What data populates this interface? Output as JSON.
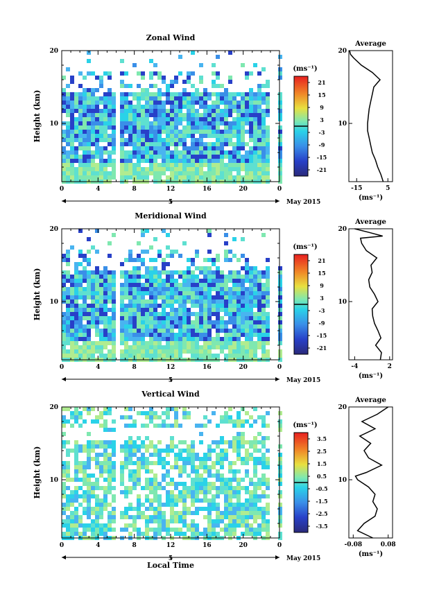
{
  "chart_data": [
    {
      "type": "heatmap",
      "title": "Zonal Wind",
      "ylabel": "Height (km)",
      "xlabel": "",
      "xlim": [
        0,
        24
      ],
      "ylim": [
        2,
        20
      ],
      "x_ticks": [
        "0",
        "4",
        "8",
        "12",
        "16",
        "20",
        "0"
      ],
      "y_ticks": [
        "20",
        "10"
      ],
      "date_label": "5",
      "month_label": "May 2015",
      "colorbar": {
        "unit": "(ms⁻¹)",
        "ticks": [
          "21",
          "15",
          "9",
          "3",
          "-3",
          "-9",
          "-15",
          "-21"
        ],
        "min": -24,
        "max": 24
      },
      "data_gaps_hours": [
        [
          0.7,
          0.9
        ],
        [
          5.9,
          6.1
        ],
        [
          17.6,
          17.8
        ],
        [
          22.6,
          23.6
        ]
      ],
      "average_profile": {
        "title": "Average",
        "xlabel": "(ms⁻¹)",
        "x_ticks": [
          "-15",
          "5"
        ],
        "xlim": [
          -20,
          8
        ],
        "height_km": [
          2,
          3,
          4,
          5,
          6,
          7,
          8,
          9,
          10,
          11,
          12,
          13,
          14,
          15,
          16,
          17,
          18,
          19,
          19.5,
          20
        ],
        "value": [
          2,
          0.5,
          -1.5,
          -3,
          -5,
          -6,
          -7,
          -8,
          -8,
          -7.5,
          -7,
          -6,
          -5,
          -4,
          0,
          -5,
          -12,
          -17,
          -19,
          -19.5
        ]
      }
    },
    {
      "type": "heatmap",
      "title": "Meridional Wind",
      "ylabel": "Height (km)",
      "xlabel": "",
      "xlim": [
        0,
        24
      ],
      "ylim": [
        2,
        20
      ],
      "x_ticks": [
        "0",
        "4",
        "8",
        "12",
        "16",
        "20",
        "0"
      ],
      "y_ticks": [
        "20",
        "10"
      ],
      "date_label": "5",
      "month_label": "May 2015",
      "colorbar": {
        "unit": "(ms⁻¹)",
        "ticks": [
          "21",
          "15",
          "9",
          "3",
          "-3",
          "-9",
          "-15",
          "-21"
        ],
        "min": -24,
        "max": 24
      },
      "data_gaps_hours": [
        [
          0.7,
          0.9
        ],
        [
          5.9,
          6.1
        ],
        [
          17.6,
          17.8
        ],
        [
          22.6,
          23.6
        ]
      ],
      "average_profile": {
        "title": "Average",
        "xlabel": "(ms⁻¹)",
        "x_ticks": [
          "-4",
          "2"
        ],
        "xlim": [
          -5,
          2.5
        ],
        "height_km": [
          2,
          3,
          4,
          5,
          6,
          7,
          8,
          9,
          10,
          11,
          12,
          13,
          14,
          15,
          16,
          17,
          18,
          18.7,
          19,
          19.5,
          20
        ],
        "value": [
          0.4,
          0.6,
          -0.4,
          0.5,
          0,
          -0.6,
          -0.9,
          -1,
          0,
          -0.6,
          -1.4,
          -1.6,
          -1,
          -1.2,
          -0.2,
          -2,
          -2.8,
          -3,
          0.8,
          -1.5,
          -4
        ]
      }
    },
    {
      "type": "heatmap",
      "title": "Vertical Wind",
      "ylabel": "Height (km)",
      "xlabel": "Local Time",
      "xlim": [
        0,
        24
      ],
      "ylim": [
        2,
        20
      ],
      "x_ticks": [
        "0",
        "4",
        "8",
        "12",
        "16",
        "20",
        "0"
      ],
      "y_ticks": [
        "20",
        "10"
      ],
      "date_label": "5",
      "month_label": "May 2015",
      "colorbar": {
        "unit": "(ms⁻¹)",
        "ticks": [
          "3.5",
          "2.5",
          "1.5",
          "0.5",
          "-0.5",
          "-1.5",
          "-2.5",
          "-3.5"
        ],
        "min": -4,
        "max": 4
      },
      "data_gaps_hours": [
        [
          0.7,
          0.9
        ],
        [
          5.9,
          6.1
        ],
        [
          17.6,
          17.8
        ],
        [
          22.6,
          23.6
        ]
      ],
      "average_profile": {
        "title": "Average",
        "xlabel": "(ms⁻¹)",
        "x_ticks": [
          "-0.08",
          "0.08"
        ],
        "xlim": [
          -0.1,
          0.1
        ],
        "height_km": [
          2,
          3,
          4,
          5,
          6,
          7,
          8,
          9,
          10,
          10.5,
          11,
          12,
          13,
          14,
          15,
          16,
          17,
          18,
          19,
          20
        ],
        "value": [
          0.01,
          -0.06,
          -0.03,
          0.02,
          0.03,
          0.01,
          0.02,
          -0.01,
          -0.06,
          -0.07,
          -0.02,
          0.05,
          -0.01,
          -0.03,
          0.0,
          -0.05,
          0.02,
          -0.04,
          0.03,
          0.08
        ]
      }
    }
  ]
}
